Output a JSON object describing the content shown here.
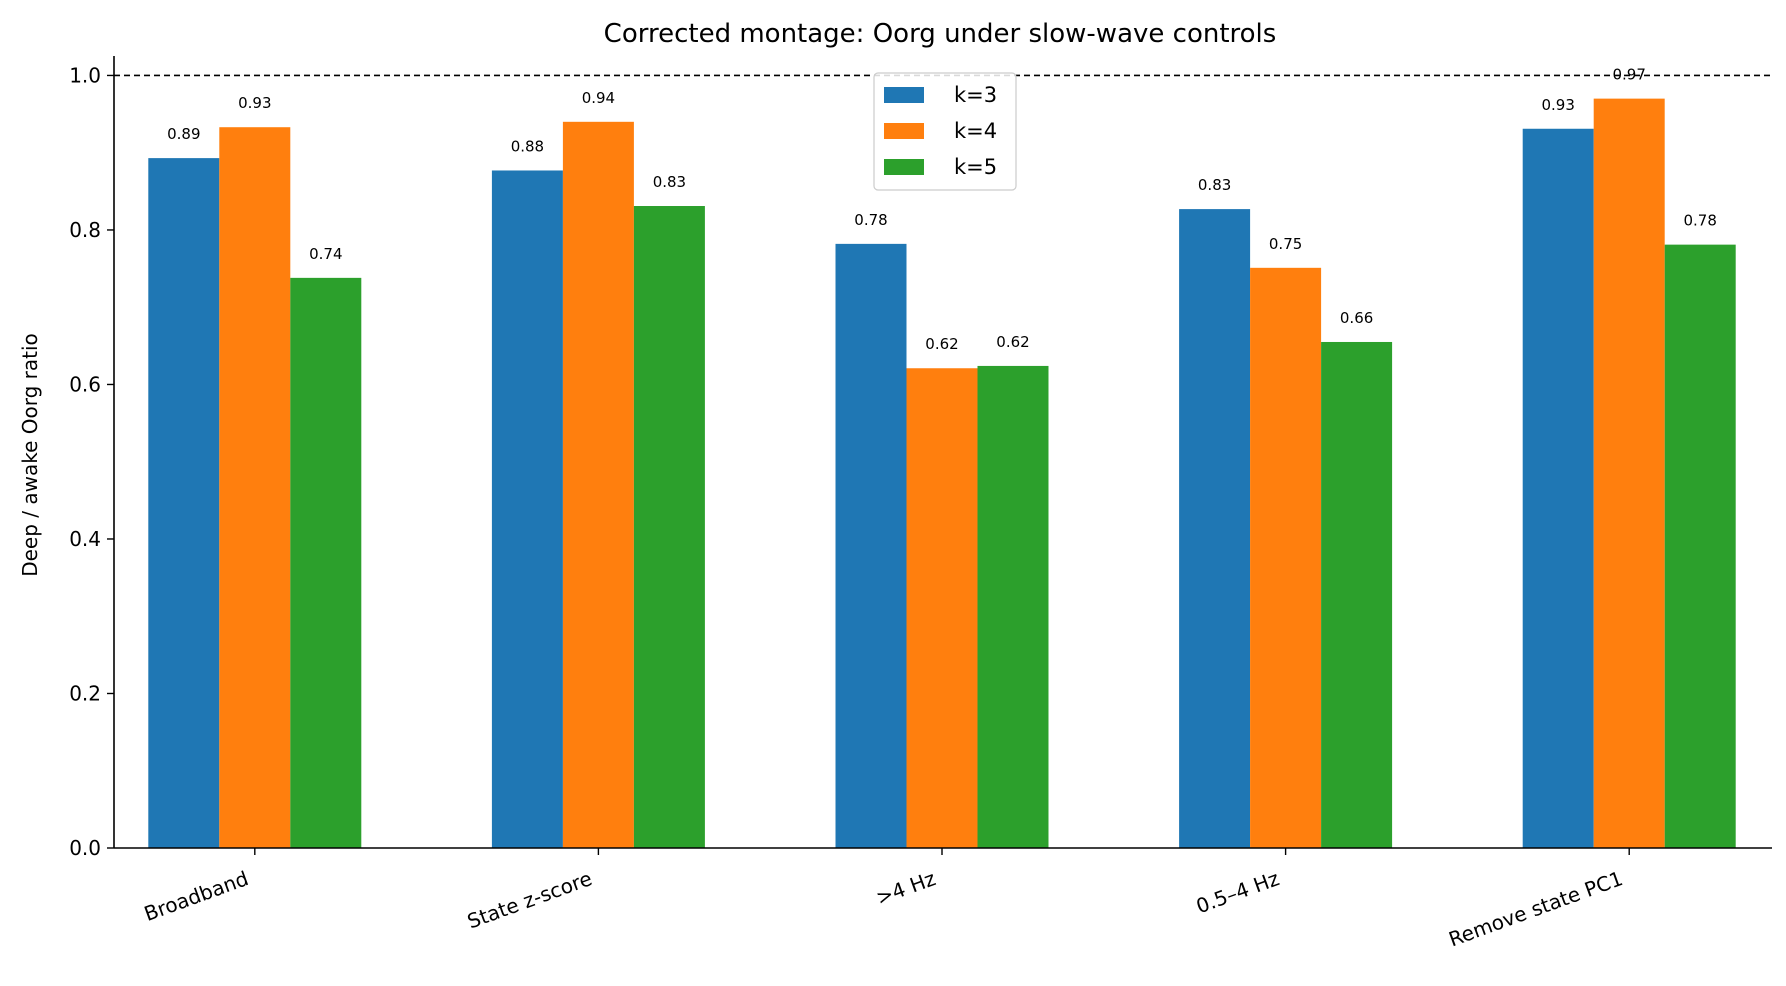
{
  "chart_data": {
    "type": "bar",
    "title": "Corrected montage: Oorg under slow-wave controls",
    "xlabel": "",
    "ylabel": "Deep / awake Oorg ratio",
    "ylim": [
      0,
      1.02
    ],
    "yticks": [
      "0.0",
      "0.2",
      "0.4",
      "0.6",
      "0.8",
      "1.0"
    ],
    "reference_line": 1.0,
    "categories": [
      "Broadband",
      "State z-score",
      ">4 Hz",
      "0.5–4 Hz",
      "Remove state PC1"
    ],
    "series": [
      {
        "name": "k=3",
        "color": "#1f77b4",
        "values": [
          0.893,
          0.877,
          0.782,
          0.827,
          0.931
        ],
        "labels": [
          "0.89",
          "0.88",
          "0.78",
          "0.83",
          "0.93"
        ]
      },
      {
        "name": "k=4",
        "color": "#ff7f0e",
        "values": [
          0.933,
          0.94,
          0.621,
          0.751,
          0.97
        ],
        "labels": [
          "0.93",
          "0.94",
          "0.62",
          "0.75",
          "0.97"
        ]
      },
      {
        "name": "k=5",
        "color": "#2ca02c",
        "values": [
          0.738,
          0.831,
          0.624,
          0.655,
          0.781
        ],
        "labels": [
          "0.74",
          "0.83",
          "0.62",
          "0.66",
          "0.78"
        ]
      }
    ],
    "legend": "upper center",
    "grid": false
  }
}
